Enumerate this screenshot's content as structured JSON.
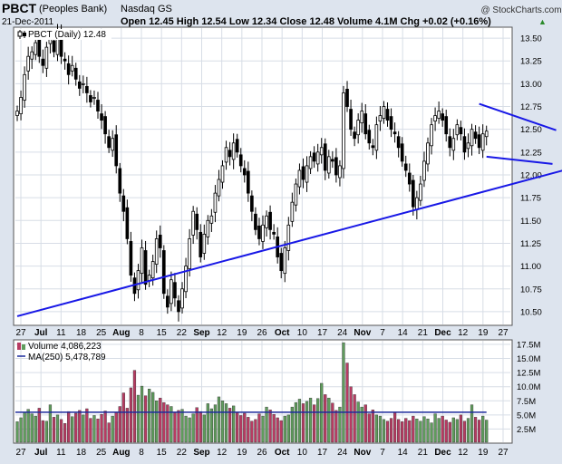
{
  "header": {
    "symbol": "PBCT",
    "company": "(Peoples Bank)",
    "exchange": "Nasdaq GS",
    "date": "21-Dec-2011",
    "watermark": "@ StockCharts.com",
    "quote": "Open 12.45  High 12.54  Low 12.34  Close 12.48  Volume 4.1M  Chg +0.02 (+0.16%)",
    "quote_arrow": "▲"
  },
  "colors": {
    "up_candle": "#000000",
    "down_candle": "#000000",
    "volume_up": "#5f9c5c",
    "volume_down": "#b73b62",
    "trendline": "#1818e6",
    "ma_line": "#1b2a9c",
    "grid": "#d7dde6"
  },
  "chart_data": [
    {
      "type": "candlestick",
      "legend_label": "PBCT (Daily) 12.48",
      "y_axis": {
        "min": 10.35,
        "max": 13.62,
        "ticks": [
          "13.50",
          "13.25",
          "13.00",
          "12.75",
          "12.50",
          "12.25",
          "12.00",
          "11.75",
          "11.50",
          "11.25",
          "11.00",
          "10.75",
          "10.50"
        ]
      },
      "x_tick_labels": [
        "27",
        "Jul",
        "11",
        "18",
        "25",
        "Aug",
        "8",
        "15",
        "22",
        "Sep",
        "12",
        "19",
        "26",
        "Oct",
        "10",
        "17",
        "24",
        "Nov",
        "7",
        "14",
        "21",
        "Dec",
        "12",
        "19",
        "27"
      ],
      "closes": [
        12.7,
        12.85,
        13.1,
        13.3,
        13.35,
        13.45,
        13.3,
        13.2,
        13.4,
        13.5,
        13.35,
        13.55,
        13.3,
        13.25,
        13.1,
        13.2,
        13.05,
        12.95,
        13.0,
        12.9,
        12.8,
        12.85,
        12.7,
        12.6,
        12.45,
        12.3,
        12.4,
        12.1,
        11.8,
        11.6,
        11.3,
        10.9,
        10.7,
        10.95,
        11.2,
        10.8,
        10.9,
        11.05,
        11.3,
        11.2,
        10.7,
        10.55,
        10.85,
        10.65,
        10.5,
        10.75,
        11.0,
        11.3,
        11.6,
        11.4,
        11.1,
        11.35,
        11.5,
        11.55,
        11.8,
        11.95,
        12.1,
        12.3,
        12.2,
        12.35,
        12.25,
        12.1,
        12.0,
        11.8,
        11.6,
        11.4,
        11.3,
        11.45,
        11.55,
        11.4,
        11.35,
        11.1,
        10.95,
        11.2,
        11.45,
        11.7,
        11.9,
        12.05,
        11.95,
        12.1,
        12.2,
        12.15,
        12.25,
        12.3,
        12.05,
        12.2,
        12.15,
        12.0,
        12.1,
        12.9,
        12.75,
        12.5,
        12.4,
        12.6,
        12.7,
        12.45,
        12.35,
        12.3,
        12.55,
        12.65,
        12.75,
        12.6,
        12.5,
        12.45,
        12.3,
        12.15,
        12.05,
        11.9,
        11.65,
        11.75,
        11.9,
        12.15,
        12.35,
        12.55,
        12.65,
        12.7,
        12.6,
        12.45,
        12.3,
        12.4,
        12.55,
        12.45,
        12.25,
        12.35,
        12.5,
        12.4,
        12.3,
        12.45,
        12.48
      ],
      "trendlines": [
        {
          "from": [
            0,
            10.45
          ],
          "to": [
            149,
            12.05
          ]
        },
        {
          "from": [
            126,
            12.78
          ],
          "to": [
            147,
            12.49
          ]
        },
        {
          "from": [
            128,
            12.2
          ],
          "to": [
            146,
            12.12
          ]
        }
      ]
    },
    {
      "type": "bar",
      "legend_label": "Volume 4,086,223",
      "ma_label": "MA(250) 5,478,789",
      "ma_value": 5.48,
      "y_axis": {
        "min": 0,
        "max": 18.3,
        "ticks": [
          "17.5M",
          "15.0M",
          "12.5M",
          "10.0M",
          "7.5M",
          "5.0M",
          "2.5M"
        ]
      },
      "x_tick_labels": [
        "27",
        "Jul",
        "11",
        "18",
        "25",
        "Aug",
        "8",
        "15",
        "22",
        "Sep",
        "12",
        "19",
        "26",
        "Oct",
        "10",
        "17",
        "24",
        "Nov",
        "7",
        "14",
        "21",
        "Dec",
        "12",
        "19",
        "27"
      ],
      "volumes": [
        3.8,
        4.5,
        5.5,
        6.0,
        5.2,
        4.8,
        6.2,
        4.0,
        3.9,
        6.8,
        4.6,
        5.0,
        4.2,
        3.5,
        5.6,
        4.7,
        5.3,
        5.8,
        5.0,
        6.1,
        4.4,
        4.9,
        4.3,
        5.1,
        5.7,
        3.6,
        4.8,
        5.4,
        6.5,
        8.9,
        6.2,
        9.8,
        12.9,
        8.5,
        10.1,
        8.4,
        9.6,
        9.0,
        7.5,
        8.0,
        7.2,
        6.8,
        6.5,
        5.4,
        5.8,
        6.0,
        4.8,
        4.5,
        5.2,
        6.3,
        5.6,
        5.0,
        7.0,
        6.1,
        6.8,
        8.2,
        7.5,
        7.0,
        6.2,
        6.6,
        5.4,
        4.9,
        5.3,
        4.6,
        3.9,
        4.2,
        5.2,
        4.8,
        6.4,
        5.9,
        5.1,
        4.5,
        4.0,
        4.8,
        5.0,
        6.4,
        7.2,
        7.8,
        7.0,
        7.4,
        8.0,
        6.8,
        7.9,
        10.6,
        8.6,
        8.0,
        7.1,
        5.8,
        6.4,
        17.8,
        14.2,
        10.0,
        8.6,
        7.3,
        6.4,
        6.8,
        5.2,
        5.9,
        5.0,
        4.8,
        4.2,
        3.9,
        4.4,
        5.5,
        4.2,
        3.8,
        4.4,
        4.0,
        4.8,
        4.3,
        3.9,
        4.7,
        4.3,
        3.6,
        5.2,
        4.4,
        4.8,
        4.1,
        3.7,
        4.5,
        4.2,
        5.0,
        3.9,
        4.4,
        6.8,
        4.6,
        4.1,
        4.8,
        4.09
      ]
    }
  ]
}
